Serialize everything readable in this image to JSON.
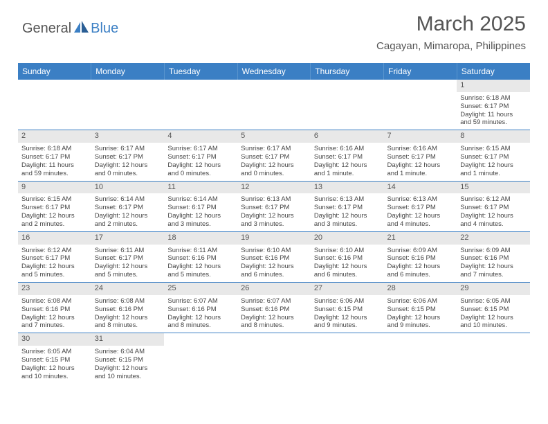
{
  "logo": {
    "part1": "General",
    "part2": "Blue"
  },
  "title": "March 2025",
  "location": "Cagayan, Mimaropa, Philippines",
  "header_bg": "#3b7fc4",
  "days_header": [
    "Sunday",
    "Monday",
    "Tuesday",
    "Wednesday",
    "Thursday",
    "Friday",
    "Saturday"
  ],
  "weeks": [
    [
      null,
      null,
      null,
      null,
      null,
      null,
      {
        "n": "1",
        "sr": "Sunrise: 6:18 AM",
        "ss": "Sunset: 6:17 PM",
        "d1": "Daylight: 11 hours",
        "d2": "and 59 minutes."
      }
    ],
    [
      {
        "n": "2",
        "sr": "Sunrise: 6:18 AM",
        "ss": "Sunset: 6:17 PM",
        "d1": "Daylight: 11 hours",
        "d2": "and 59 minutes."
      },
      {
        "n": "3",
        "sr": "Sunrise: 6:17 AM",
        "ss": "Sunset: 6:17 PM",
        "d1": "Daylight: 12 hours",
        "d2": "and 0 minutes."
      },
      {
        "n": "4",
        "sr": "Sunrise: 6:17 AM",
        "ss": "Sunset: 6:17 PM",
        "d1": "Daylight: 12 hours",
        "d2": "and 0 minutes."
      },
      {
        "n": "5",
        "sr": "Sunrise: 6:17 AM",
        "ss": "Sunset: 6:17 PM",
        "d1": "Daylight: 12 hours",
        "d2": "and 0 minutes."
      },
      {
        "n": "6",
        "sr": "Sunrise: 6:16 AM",
        "ss": "Sunset: 6:17 PM",
        "d1": "Daylight: 12 hours",
        "d2": "and 1 minute."
      },
      {
        "n": "7",
        "sr": "Sunrise: 6:16 AM",
        "ss": "Sunset: 6:17 PM",
        "d1": "Daylight: 12 hours",
        "d2": "and 1 minute."
      },
      {
        "n": "8",
        "sr": "Sunrise: 6:15 AM",
        "ss": "Sunset: 6:17 PM",
        "d1": "Daylight: 12 hours",
        "d2": "and 1 minute."
      }
    ],
    [
      {
        "n": "9",
        "sr": "Sunrise: 6:15 AM",
        "ss": "Sunset: 6:17 PM",
        "d1": "Daylight: 12 hours",
        "d2": "and 2 minutes."
      },
      {
        "n": "10",
        "sr": "Sunrise: 6:14 AM",
        "ss": "Sunset: 6:17 PM",
        "d1": "Daylight: 12 hours",
        "d2": "and 2 minutes."
      },
      {
        "n": "11",
        "sr": "Sunrise: 6:14 AM",
        "ss": "Sunset: 6:17 PM",
        "d1": "Daylight: 12 hours",
        "d2": "and 3 minutes."
      },
      {
        "n": "12",
        "sr": "Sunrise: 6:13 AM",
        "ss": "Sunset: 6:17 PM",
        "d1": "Daylight: 12 hours",
        "d2": "and 3 minutes."
      },
      {
        "n": "13",
        "sr": "Sunrise: 6:13 AM",
        "ss": "Sunset: 6:17 PM",
        "d1": "Daylight: 12 hours",
        "d2": "and 3 minutes."
      },
      {
        "n": "14",
        "sr": "Sunrise: 6:13 AM",
        "ss": "Sunset: 6:17 PM",
        "d1": "Daylight: 12 hours",
        "d2": "and 4 minutes."
      },
      {
        "n": "15",
        "sr": "Sunrise: 6:12 AM",
        "ss": "Sunset: 6:17 PM",
        "d1": "Daylight: 12 hours",
        "d2": "and 4 minutes."
      }
    ],
    [
      {
        "n": "16",
        "sr": "Sunrise: 6:12 AM",
        "ss": "Sunset: 6:17 PM",
        "d1": "Daylight: 12 hours",
        "d2": "and 5 minutes."
      },
      {
        "n": "17",
        "sr": "Sunrise: 6:11 AM",
        "ss": "Sunset: 6:17 PM",
        "d1": "Daylight: 12 hours",
        "d2": "and 5 minutes."
      },
      {
        "n": "18",
        "sr": "Sunrise: 6:11 AM",
        "ss": "Sunset: 6:16 PM",
        "d1": "Daylight: 12 hours",
        "d2": "and 5 minutes."
      },
      {
        "n": "19",
        "sr": "Sunrise: 6:10 AM",
        "ss": "Sunset: 6:16 PM",
        "d1": "Daylight: 12 hours",
        "d2": "and 6 minutes."
      },
      {
        "n": "20",
        "sr": "Sunrise: 6:10 AM",
        "ss": "Sunset: 6:16 PM",
        "d1": "Daylight: 12 hours",
        "d2": "and 6 minutes."
      },
      {
        "n": "21",
        "sr": "Sunrise: 6:09 AM",
        "ss": "Sunset: 6:16 PM",
        "d1": "Daylight: 12 hours",
        "d2": "and 6 minutes."
      },
      {
        "n": "22",
        "sr": "Sunrise: 6:09 AM",
        "ss": "Sunset: 6:16 PM",
        "d1": "Daylight: 12 hours",
        "d2": "and 7 minutes."
      }
    ],
    [
      {
        "n": "23",
        "sr": "Sunrise: 6:08 AM",
        "ss": "Sunset: 6:16 PM",
        "d1": "Daylight: 12 hours",
        "d2": "and 7 minutes."
      },
      {
        "n": "24",
        "sr": "Sunrise: 6:08 AM",
        "ss": "Sunset: 6:16 PM",
        "d1": "Daylight: 12 hours",
        "d2": "and 8 minutes."
      },
      {
        "n": "25",
        "sr": "Sunrise: 6:07 AM",
        "ss": "Sunset: 6:16 PM",
        "d1": "Daylight: 12 hours",
        "d2": "and 8 minutes."
      },
      {
        "n": "26",
        "sr": "Sunrise: 6:07 AM",
        "ss": "Sunset: 6:16 PM",
        "d1": "Daylight: 12 hours",
        "d2": "and 8 minutes."
      },
      {
        "n": "27",
        "sr": "Sunrise: 6:06 AM",
        "ss": "Sunset: 6:15 PM",
        "d1": "Daylight: 12 hours",
        "d2": "and 9 minutes."
      },
      {
        "n": "28",
        "sr": "Sunrise: 6:06 AM",
        "ss": "Sunset: 6:15 PM",
        "d1": "Daylight: 12 hours",
        "d2": "and 9 minutes."
      },
      {
        "n": "29",
        "sr": "Sunrise: 6:05 AM",
        "ss": "Sunset: 6:15 PM",
        "d1": "Daylight: 12 hours",
        "d2": "and 10 minutes."
      }
    ],
    [
      {
        "n": "30",
        "sr": "Sunrise: 6:05 AM",
        "ss": "Sunset: 6:15 PM",
        "d1": "Daylight: 12 hours",
        "d2": "and 10 minutes."
      },
      {
        "n": "31",
        "sr": "Sunrise: 6:04 AM",
        "ss": "Sunset: 6:15 PM",
        "d1": "Daylight: 12 hours",
        "d2": "and 10 minutes."
      },
      null,
      null,
      null,
      null,
      null
    ]
  ]
}
